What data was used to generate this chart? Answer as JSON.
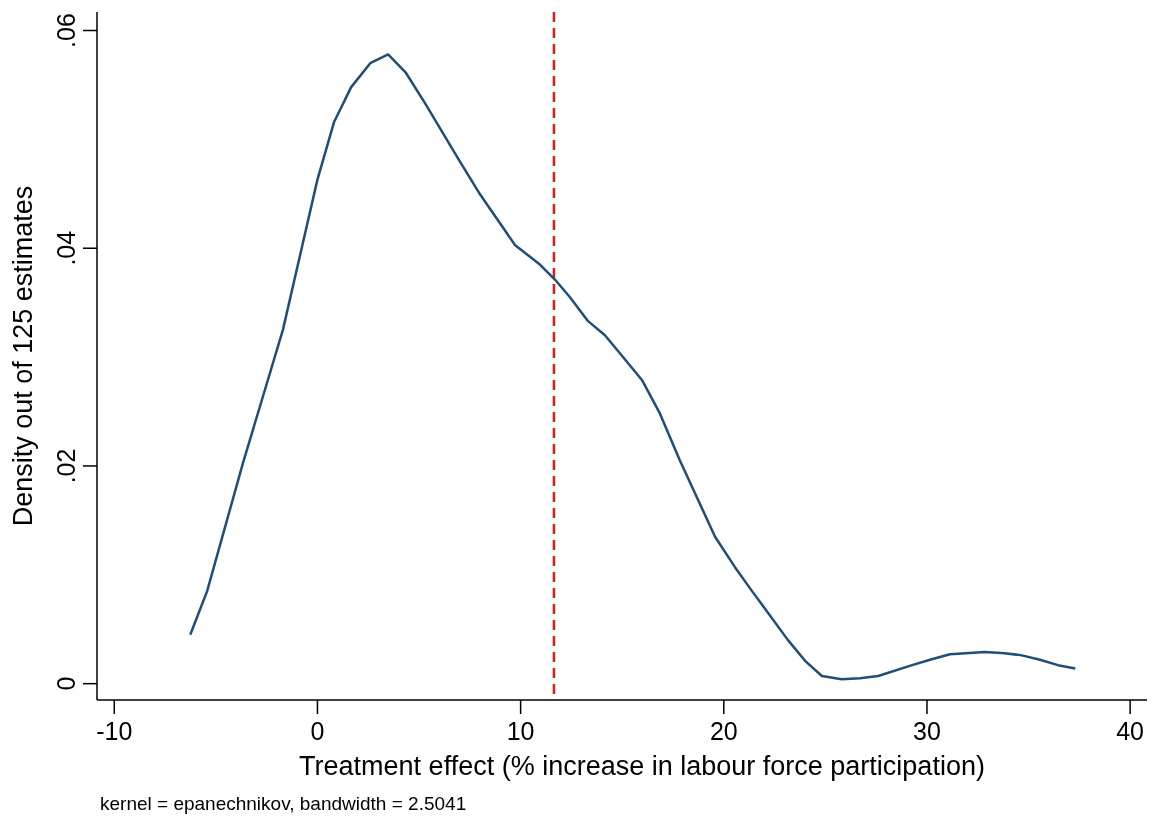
{
  "chart_data": {
    "type": "line",
    "xlabel": "Treatment effect (% increase in labour force participation)",
    "ylabel": "Density out of 125 estimates",
    "annotations": [
      "kernel = epanechnikov, bandwidth = 2.5041"
    ],
    "xlim": [
      -10.85,
      40.83
    ],
    "ylim": [
      -0.0015,
      0.0617
    ],
    "xticks": [
      -10,
      0,
      10,
      20,
      30,
      40
    ],
    "yticks": [
      {
        "value": 0,
        "label": "0"
      },
      {
        "value": 0.02,
        "label": ".02"
      },
      {
        "value": 0.04,
        "label": ".04"
      },
      {
        "value": 0.06,
        "label": ".06"
      }
    ],
    "grid": false,
    "marker": "none",
    "line_style": "solid",
    "series": [
      {
        "color": "#1f4e79",
        "x": [
          -6.26,
          -5.43,
          -3.66,
          -1.7,
          0,
          0.82,
          1.66,
          2.6,
          3.48,
          4.36,
          5.3,
          6.97,
          7.95,
          9.72,
          10.95,
          11.7,
          12.43,
          13.32,
          14.15,
          15.09,
          15.97,
          16.86,
          17.84,
          19.57,
          20.55,
          21.39,
          23.16,
          24.0,
          24.83,
          25.8,
          26.7,
          27.6,
          29.27,
          30.15,
          31.13,
          32.85,
          33.84,
          34.67,
          35.56,
          36.45,
          37.3
        ],
        "values": [
          0.0045,
          0.0085,
          0.0203,
          0.0325,
          0.0463,
          0.0516,
          0.0548,
          0.057,
          0.0578,
          0.0561,
          0.0533,
          0.0481,
          0.0451,
          0.0403,
          0.0385,
          0.0371,
          0.0355,
          0.0333,
          0.032,
          0.0299,
          0.0279,
          0.0248,
          0.0205,
          0.0135,
          0.0107,
          0.0085,
          0.004,
          0.0021,
          0.0007,
          0.0004,
          0.0005,
          0.0007,
          0.0017,
          0.0022,
          0.0027,
          0.0029,
          0.0028,
          0.0026,
          0.0022,
          0.0017,
          0.0014
        ]
      }
    ],
    "ref_lines": [
      {
        "axis": "x",
        "value": 11.64,
        "color": "#e31a1c",
        "line_style": "dashed"
      }
    ]
  }
}
